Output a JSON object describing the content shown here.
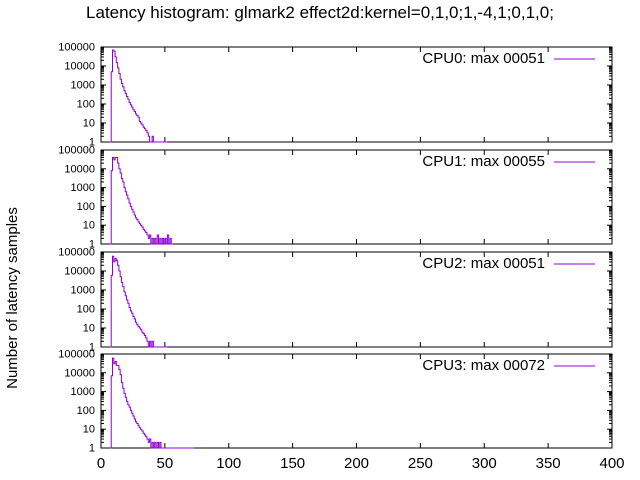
{
  "title": "Latency histogram:  glmark2 effect2d:kernel=0,1,0;1,-4,1;0,1,0;",
  "ylabel": "Number of latency samples",
  "series_color": "#9400d3",
  "chart_data": {
    "type": "line",
    "title": "Latency histogram:  glmark2 effect2d:kernel=0,1,0;1,-4,1;0,1,0;",
    "xlabel": "",
    "ylabel": "Number of latency samples",
    "xlim": [
      0,
      400
    ],
    "ylim": [
      1,
      100000
    ],
    "yscale": "log",
    "grid": false,
    "legend_position": "top-right",
    "xticks": [
      "0",
      "50",
      "100",
      "150",
      "200",
      "250",
      "300",
      "350",
      "400"
    ],
    "yticks": [
      "1",
      "10",
      "100",
      "1000",
      "10000",
      "100000"
    ],
    "panels": [
      {
        "legend": "CPU0: max 00051",
        "points": [
          [
            7,
            1
          ],
          [
            8,
            5000
          ],
          [
            9,
            70000
          ],
          [
            10,
            60000
          ],
          [
            11,
            30000
          ],
          [
            12,
            15000
          ],
          [
            13,
            8000
          ],
          [
            14,
            4000
          ],
          [
            15,
            2000
          ],
          [
            16,
            1200
          ],
          [
            17,
            800
          ],
          [
            18,
            500
          ],
          [
            19,
            350
          ],
          [
            20,
            250
          ],
          [
            21,
            180
          ],
          [
            22,
            120
          ],
          [
            23,
            90
          ],
          [
            24,
            70
          ],
          [
            25,
            50
          ],
          [
            26,
            40
          ],
          [
            27,
            30
          ],
          [
            28,
            25
          ],
          [
            29,
            20
          ],
          [
            30,
            12
          ],
          [
            31,
            10
          ],
          [
            32,
            8
          ],
          [
            33,
            6
          ],
          [
            34,
            5
          ],
          [
            35,
            4
          ],
          [
            36,
            3
          ],
          [
            37,
            2
          ],
          [
            38,
            1
          ],
          [
            39,
            1
          ],
          [
            40,
            2
          ],
          [
            41,
            1
          ],
          [
            45,
            1
          ],
          [
            51,
            1
          ]
        ]
      },
      {
        "legend": "CPU1: max 00055",
        "points": [
          [
            7,
            1
          ],
          [
            8,
            8000
          ],
          [
            9,
            40000
          ],
          [
            10,
            30000
          ],
          [
            11,
            40000
          ],
          [
            12,
            40000
          ],
          [
            13,
            20000
          ],
          [
            14,
            10000
          ],
          [
            15,
            6000
          ],
          [
            16,
            3000
          ],
          [
            17,
            2000
          ],
          [
            18,
            1000
          ],
          [
            19,
            600
          ],
          [
            20,
            400
          ],
          [
            21,
            250
          ],
          [
            22,
            150
          ],
          [
            23,
            100
          ],
          [
            24,
            70
          ],
          [
            25,
            50
          ],
          [
            26,
            35
          ],
          [
            27,
            25
          ],
          [
            28,
            20
          ],
          [
            29,
            15
          ],
          [
            30,
            12
          ],
          [
            31,
            10
          ],
          [
            32,
            8
          ],
          [
            33,
            6
          ],
          [
            34,
            5
          ],
          [
            35,
            4
          ],
          [
            36,
            3
          ],
          [
            37,
            2
          ],
          [
            38,
            3
          ],
          [
            39,
            1
          ],
          [
            40,
            2
          ],
          [
            41,
            1
          ],
          [
            42,
            2
          ],
          [
            43,
            1
          ],
          [
            44,
            3
          ],
          [
            45,
            1
          ],
          [
            46,
            2
          ],
          [
            47,
            1
          ],
          [
            48,
            2
          ],
          [
            49,
            1
          ],
          [
            50,
            2
          ],
          [
            51,
            1
          ],
          [
            52,
            3
          ],
          [
            53,
            1
          ],
          [
            54,
            2
          ],
          [
            55,
            1
          ]
        ]
      },
      {
        "legend": "CPU2: max 00051",
        "points": [
          [
            7,
            1
          ],
          [
            8,
            6000
          ],
          [
            9,
            60000
          ],
          [
            10,
            30000
          ],
          [
            11,
            45000
          ],
          [
            12,
            35000
          ],
          [
            13,
            20000
          ],
          [
            14,
            10000
          ],
          [
            15,
            5000
          ],
          [
            16,
            2500
          ],
          [
            17,
            1500
          ],
          [
            18,
            800
          ],
          [
            19,
            500
          ],
          [
            20,
            300
          ],
          [
            21,
            200
          ],
          [
            22,
            120
          ],
          [
            23,
            80
          ],
          [
            24,
            60
          ],
          [
            25,
            40
          ],
          [
            26,
            30
          ],
          [
            27,
            20
          ],
          [
            28,
            15
          ],
          [
            29,
            12
          ],
          [
            30,
            10
          ],
          [
            31,
            8
          ],
          [
            32,
            6
          ],
          [
            33,
            5
          ],
          [
            34,
            4
          ],
          [
            35,
            3
          ],
          [
            36,
            2
          ],
          [
            37,
            1
          ],
          [
            38,
            2
          ],
          [
            39,
            1
          ],
          [
            40,
            2
          ],
          [
            41,
            1
          ],
          [
            51,
            1
          ]
        ]
      },
      {
        "legend": "CPU3: max 00072",
        "points": [
          [
            7,
            1
          ],
          [
            8,
            7000
          ],
          [
            9,
            60000
          ],
          [
            10,
            30000
          ],
          [
            11,
            40000
          ],
          [
            12,
            25000
          ],
          [
            13,
            25000
          ],
          [
            14,
            15000
          ],
          [
            15,
            8000
          ],
          [
            16,
            3000
          ],
          [
            17,
            1500
          ],
          [
            18,
            800
          ],
          [
            19,
            500
          ],
          [
            20,
            300
          ],
          [
            21,
            200
          ],
          [
            22,
            150
          ],
          [
            23,
            100
          ],
          [
            24,
            70
          ],
          [
            25,
            50
          ],
          [
            26,
            35
          ],
          [
            27,
            25
          ],
          [
            28,
            20
          ],
          [
            29,
            15
          ],
          [
            30,
            12
          ],
          [
            31,
            10
          ],
          [
            32,
            8
          ],
          [
            33,
            6
          ],
          [
            34,
            5
          ],
          [
            35,
            4
          ],
          [
            36,
            3
          ],
          [
            37,
            2
          ],
          [
            38,
            3
          ],
          [
            39,
            1
          ],
          [
            40,
            2
          ],
          [
            41,
            1
          ],
          [
            42,
            2
          ],
          [
            43,
            1
          ],
          [
            44,
            2
          ],
          [
            45,
            1
          ],
          [
            46,
            2
          ],
          [
            47,
            1
          ],
          [
            51,
            1
          ],
          [
            72,
            1
          ]
        ]
      }
    ]
  }
}
